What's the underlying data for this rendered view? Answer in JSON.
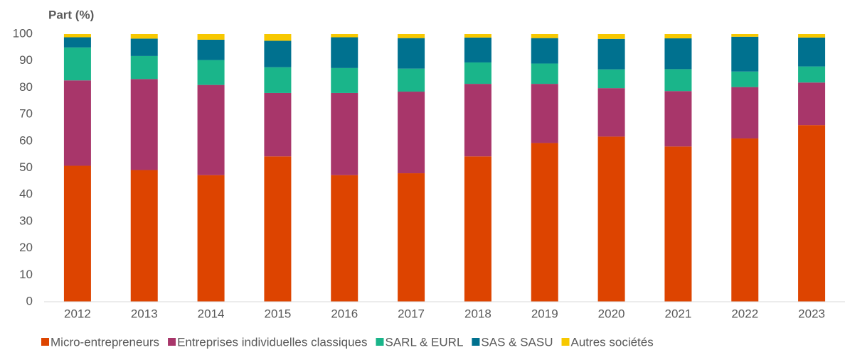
{
  "chart_data": {
    "type": "stacked_bar",
    "y_label": "Part (%)",
    "categories": [
      "2012",
      "2013",
      "2014",
      "2015",
      "2016",
      "2017",
      "2018",
      "2019",
      "2020",
      "2021",
      "2022",
      "2023"
    ],
    "series": [
      {
        "name": "Micro-entrepreneurs",
        "color": "#dd4400",
        "values": [
          50.8,
          49.2,
          47.3,
          54.3,
          47.3,
          48.0,
          54.3,
          59.3,
          61.7,
          58.0,
          61.0,
          66.0
        ]
      },
      {
        "name": "Entreprises individuelles classiques",
        "color": "#a8366a",
        "values": [
          31.9,
          34.0,
          33.7,
          23.7,
          30.7,
          30.5,
          27.1,
          22.1,
          18.1,
          20.7,
          19.2,
          15.9
        ]
      },
      {
        "name": "SARL & EURL",
        "color": "#1ab58a",
        "values": [
          12.3,
          8.6,
          9.3,
          9.6,
          9.3,
          8.6,
          8.0,
          7.6,
          7.0,
          8.2,
          5.8,
          6.0
        ]
      },
      {
        "name": "SAS & SASU",
        "color": "#00718f",
        "values": [
          3.8,
          6.5,
          7.6,
          9.9,
          11.5,
          11.4,
          9.3,
          9.5,
          11.4,
          11.5,
          13.0,
          10.8
        ]
      },
      {
        "name": "Autres sociétés",
        "color": "#f7c800",
        "values": [
          1.2,
          1.7,
          2.1,
          2.5,
          1.2,
          1.5,
          1.3,
          1.5,
          1.8,
          1.6,
          1.0,
          1.3
        ]
      }
    ],
    "ylim": [
      0,
      100
    ],
    "yticks": [
      0,
      10,
      20,
      30,
      40,
      50,
      60,
      70,
      80,
      90,
      100
    ],
    "grid": false,
    "legend": "bottom"
  }
}
